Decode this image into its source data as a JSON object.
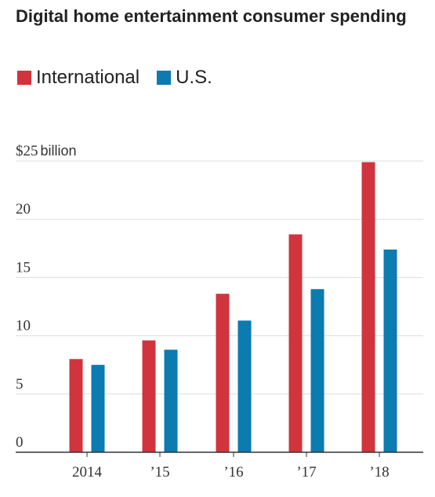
{
  "chart_data": {
    "type": "bar",
    "title": "Digital home entertainment consumer spending",
    "categories": [
      "2014",
      "’15",
      "’16",
      "’17",
      "’18"
    ],
    "series": [
      {
        "name": "International",
        "color": "#d1343d",
        "values": [
          8.0,
          9.6,
          13.6,
          18.7,
          24.9
        ]
      },
      {
        "name": "U.S.",
        "color": "#0b7bb0",
        "values": [
          7.5,
          8.8,
          11.3,
          14.0,
          17.4
        ]
      }
    ],
    "ylim": [
      0,
      25
    ],
    "yticks": [
      {
        "value": 0,
        "label": "0"
      },
      {
        "value": 5,
        "label": "5"
      },
      {
        "value": 10,
        "label": "10"
      },
      {
        "value": 15,
        "label": "15"
      },
      {
        "value": 20,
        "label": "20"
      },
      {
        "value": 25,
        "label": "$25"
      }
    ],
    "yunit": "billion",
    "grid": true,
    "legend": "top-left"
  }
}
